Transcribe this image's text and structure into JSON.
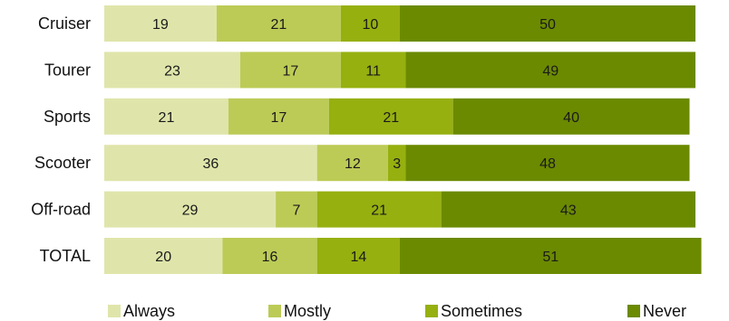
{
  "chart_data": {
    "type": "bar",
    "orientation": "horizontal",
    "stacked": true,
    "categories": [
      "Cruiser",
      "Tourer",
      "Sports",
      "Scooter",
      "Off-road",
      "TOTAL"
    ],
    "series": [
      {
        "name": "Always",
        "color": "#dfe5aa",
        "values": [
          19,
          23,
          21,
          36,
          29,
          20
        ]
      },
      {
        "name": "Mostly",
        "color": "#bccb56",
        "values": [
          21,
          17,
          17,
          12,
          7,
          16
        ]
      },
      {
        "name": "Sometimes",
        "color": "#96b010",
        "values": [
          10,
          11,
          21,
          3,
          21,
          14
        ]
      },
      {
        "name": "Never",
        "color": "#6b8a00",
        "values": [
          50,
          49,
          40,
          48,
          43,
          51
        ]
      }
    ],
    "title": "",
    "xlabel": "",
    "ylabel": "",
    "xlim": [
      0,
      100
    ],
    "grid": false,
    "legend_position": "bottom"
  }
}
